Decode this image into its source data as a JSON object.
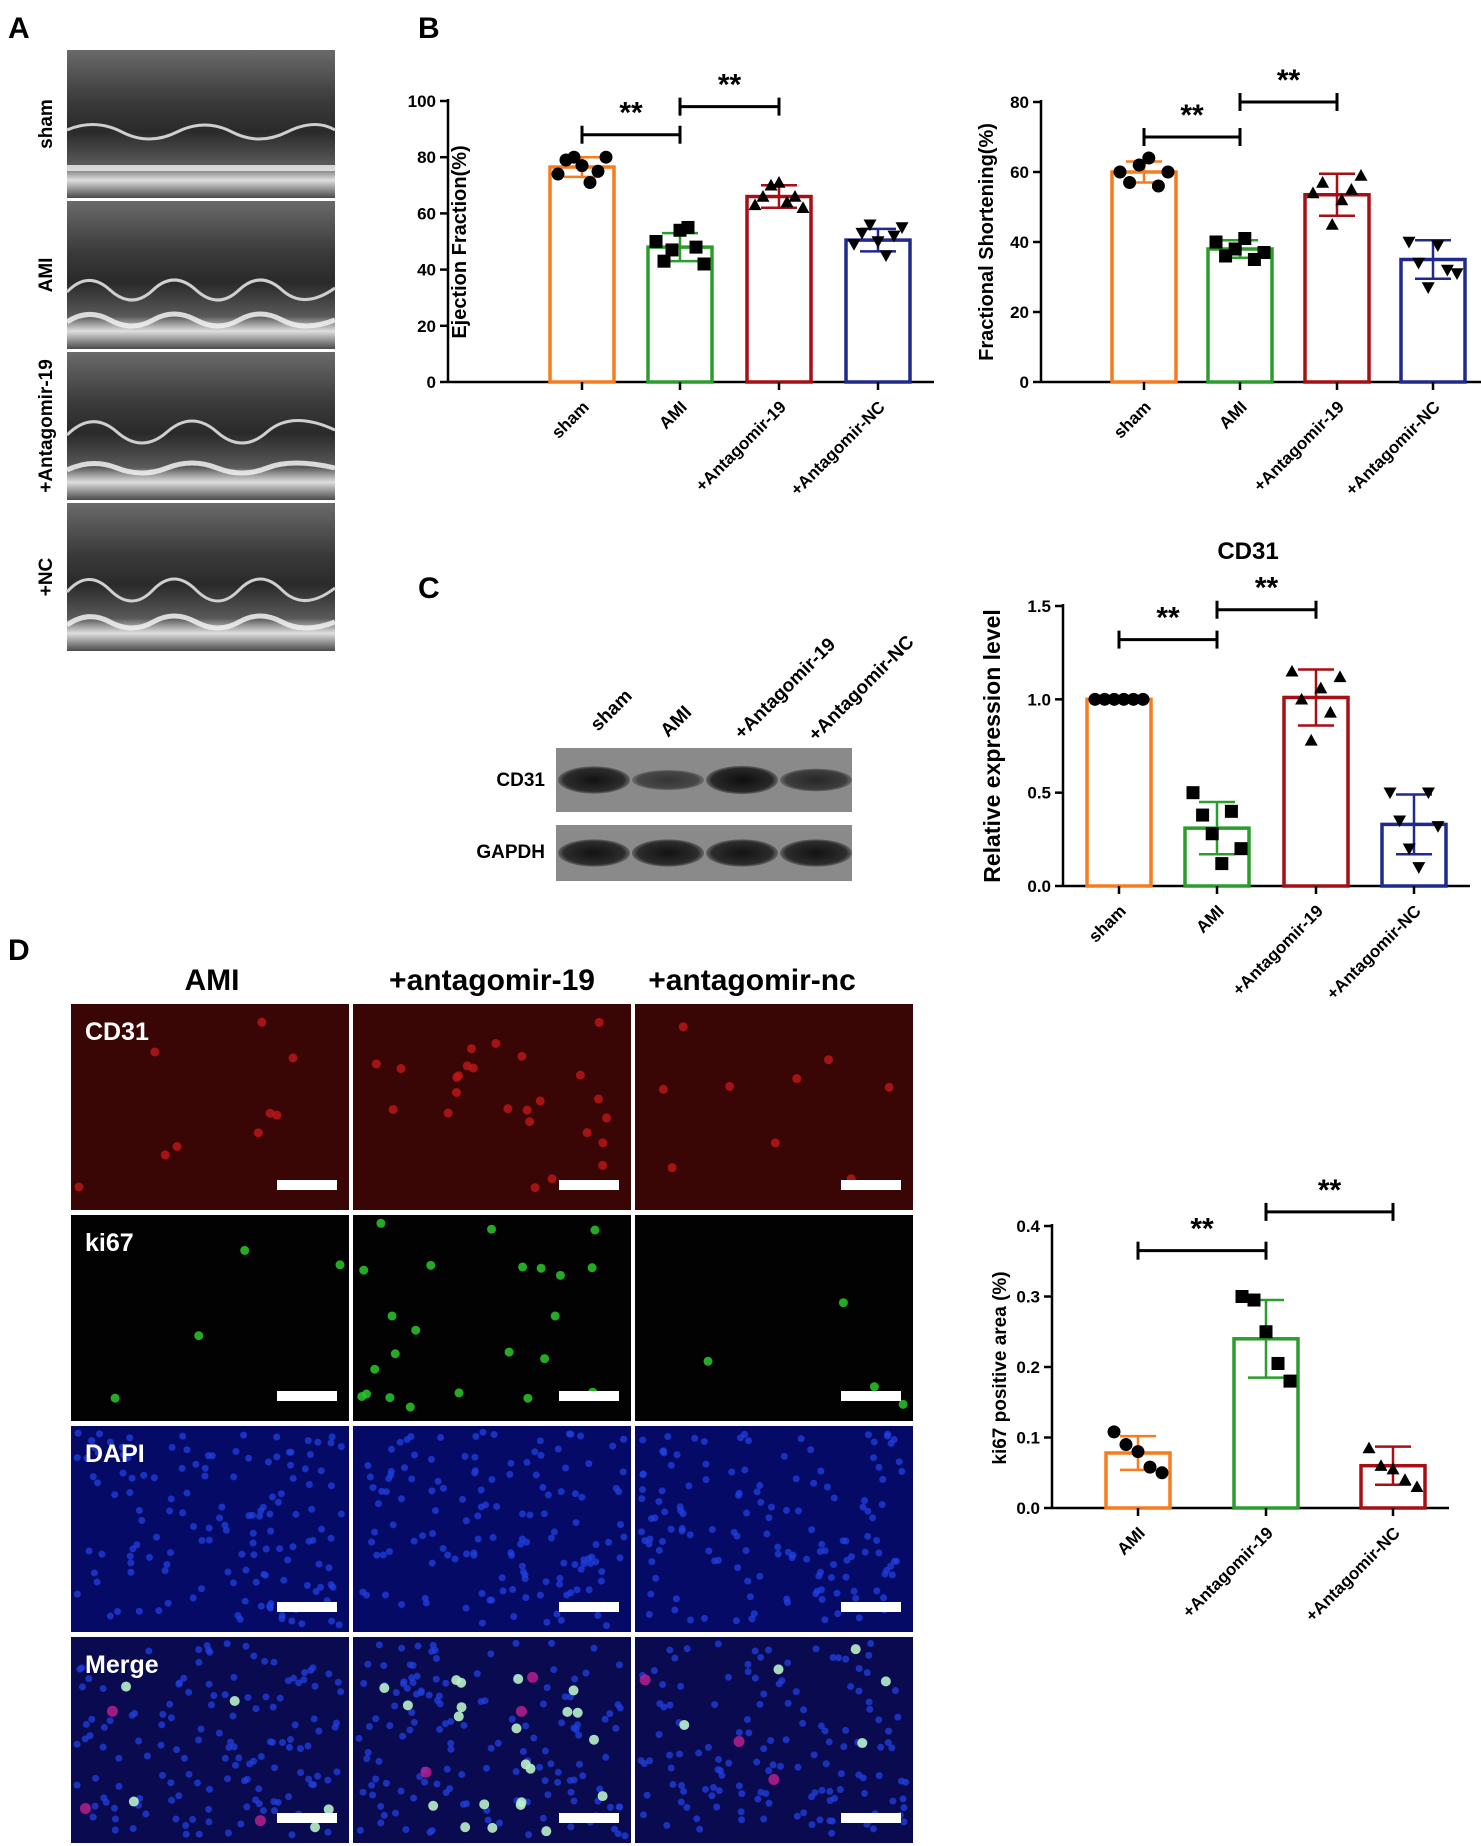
{
  "panel_labels": {
    "a": "A",
    "b": "B",
    "c": "C",
    "d": "D"
  },
  "echo": {
    "labels": [
      "sham",
      "AMI",
      "+Antagomir-19",
      "+NC"
    ]
  },
  "western": {
    "lanes": [
      "sham",
      "AMI",
      "+Antagomir-19",
      "+Antagomir-NC"
    ],
    "rows": [
      "CD31",
      "GAPDH"
    ],
    "band_intensity": {
      "CD31": [
        0.85,
        0.45,
        0.9,
        0.6
      ],
      "GAPDH": [
        0.85,
        0.85,
        0.85,
        0.85
      ]
    }
  },
  "micro": {
    "columns": [
      "AMI",
      "+antagomir-19",
      "+antagomir-nc"
    ],
    "rows": [
      "CD31",
      "ki67",
      "DAPI",
      "Merge"
    ],
    "colors": {
      "CD31": "#3a0505",
      "ki67": "#020202",
      "DAPI": "#050a66",
      "Merge": "#0a0a50"
    }
  },
  "colors": {
    "sham": "#f57c1f",
    "ami": "#2a9d2a",
    "antagomir19": "#a50f15",
    "antagomirnc": "#1f2a8c",
    "mark": "#000000"
  },
  "chart_data": [
    {
      "id": "ef",
      "type": "bar",
      "title": "",
      "ylabel": "Ejection Fraction(%)",
      "categories": [
        "sham",
        "AMI",
        "+Antagomir-19",
        "+Antagomir-NC"
      ],
      "values": [
        76.5,
        48,
        66,
        50.5
      ],
      "errors": [
        3.5,
        5,
        4,
        4
      ],
      "ylim": [
        0,
        100
      ],
      "yticks": [
        0,
        20,
        40,
        60,
        80,
        100
      ],
      "tick_labels": [
        "0",
        "20",
        "40",
        "60",
        "80",
        "100"
      ],
      "markers": [
        "circle",
        "square",
        "triangle",
        "triangle-down"
      ],
      "points": [
        [
          74,
          79,
          80,
          77,
          71,
          75,
          80
        ],
        [
          50,
          43,
          47,
          54,
          55,
          48,
          42
        ],
        [
          63,
          66,
          70,
          71,
          64,
          66,
          62
        ],
        [
          49,
          53,
          56,
          50,
          45,
          52,
          55
        ]
      ],
      "comparisons": [
        {
          "from": 0,
          "to": 1,
          "label": "**",
          "y": 88
        },
        {
          "from": 1,
          "to": 2,
          "label": "**",
          "y": 98
        }
      ]
    },
    {
      "id": "fs",
      "type": "bar",
      "title": "",
      "ylabel": "Fractional Shortening(%)",
      "categories": [
        "sham",
        "AMI",
        "+Antagomir-19",
        "+Antagomir-NC"
      ],
      "values": [
        60,
        38,
        53.5,
        35
      ],
      "errors": [
        3,
        2.5,
        6,
        5.5
      ],
      "ylim": [
        0,
        80
      ],
      "yticks": [
        0,
        20,
        40,
        60,
        80
      ],
      "tick_labels": [
        "0",
        "20",
        "40",
        "60",
        "80"
      ],
      "markers": [
        "circle",
        "square",
        "triangle",
        "triangle-down"
      ],
      "points": [
        [
          60,
          57,
          62,
          64,
          56,
          60
        ],
        [
          40,
          36,
          38,
          41,
          35,
          37
        ],
        [
          54,
          57,
          45,
          52,
          55,
          59
        ],
        [
          40,
          34,
          27,
          39,
          32,
          31
        ]
      ],
      "comparisons": [
        {
          "from": 0,
          "to": 1,
          "label": "**",
          "y": 70
        },
        {
          "from": 1,
          "to": 2,
          "label": "**",
          "y": 80
        }
      ]
    },
    {
      "id": "cd31",
      "type": "bar",
      "title": "CD31",
      "ylabel": "Relative expression level",
      "categories": [
        "sham",
        "AMI",
        "+Antagomir-19",
        "+Antagomir-NC"
      ],
      "values": [
        1.0,
        0.31,
        1.01,
        0.33
      ],
      "errors": [
        0,
        0.14,
        0.15,
        0.16
      ],
      "ylim": [
        0,
        1.5
      ],
      "yticks": [
        0,
        0.5,
        1.0,
        1.5
      ],
      "tick_labels": [
        "0.0",
        "0.5",
        "1.0",
        "1.5"
      ],
      "markers": [
        "circle",
        "square",
        "triangle",
        "triangle-down"
      ],
      "points": [
        [
          1,
          1,
          1,
          1,
          1,
          1
        ],
        [
          0.5,
          0.38,
          0.28,
          0.12,
          0.4,
          0.2
        ],
        [
          1.15,
          1.0,
          0.78,
          1.06,
          0.93,
          1.12
        ],
        [
          0.5,
          0.35,
          0.2,
          0.1,
          0.5,
          0.32
        ]
      ],
      "comparisons": [
        {
          "from": 0,
          "to": 1,
          "label": "**",
          "y": 1.32
        },
        {
          "from": 1,
          "to": 2,
          "label": "**",
          "y": 1.48
        }
      ]
    },
    {
      "id": "ki67",
      "type": "bar",
      "title": "",
      "ylabel": "ki67 positive area (%)",
      "categories": [
        "AMI",
        "+Antagomir-19",
        "+Antagomir-NC"
      ],
      "values": [
        0.078,
        0.24,
        0.06
      ],
      "errors": [
        0.024,
        0.055,
        0.027
      ],
      "ylim": [
        0,
        0.4
      ],
      "yticks": [
        0,
        0.1,
        0.2,
        0.3,
        0.4
      ],
      "tick_labels": [
        "0.0",
        "0.1",
        "0.2",
        "0.3",
        "0.4"
      ],
      "markers": [
        "circle",
        "square",
        "triangle"
      ],
      "points": [
        [
          0.108,
          0.09,
          0.08,
          0.058,
          0.05
        ],
        [
          0.3,
          0.295,
          0.25,
          0.205,
          0.18
        ],
        [
          0.085,
          0.06,
          0.055,
          0.04,
          0.03
        ]
      ],
      "comparisons": [
        {
          "from": 0,
          "to": 1,
          "label": "**",
          "y": 0.365
        },
        {
          "from": 1,
          "to": 2,
          "label": "**",
          "y": 0.42
        }
      ]
    }
  ]
}
